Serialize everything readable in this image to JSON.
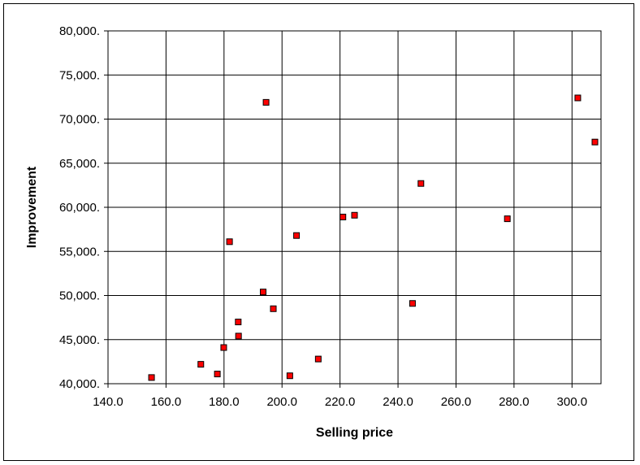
{
  "chart_data": {
    "type": "scatter",
    "title": "",
    "xlabel": "Selling price",
    "ylabel": "Improvement",
    "xlim": [
      140,
      310
    ],
    "ylim": [
      40000,
      80000
    ],
    "grid": true,
    "legend": "none",
    "x_ticks": [
      140,
      160,
      180,
      200,
      220,
      240,
      260,
      280,
      300
    ],
    "x_tick_labels": [
      "140.0",
      "160.0",
      "180.0",
      "200.0",
      "220.0",
      "240.0",
      "260.0",
      "280.0",
      "300.0"
    ],
    "y_ticks": [
      40000,
      45000,
      50000,
      55000,
      60000,
      65000,
      70000,
      75000,
      80000
    ],
    "y_tick_labels": [
      "40,000.",
      "45,000.",
      "50,000.",
      "55,000.",
      "60,000.",
      "65,000.",
      "70,000.",
      "75,000.",
      "80,000."
    ],
    "marker_color": "#ff0000",
    "marker_edge": "#000000",
    "points": [
      {
        "x": 155.0,
        "y": 40700
      },
      {
        "x": 172.0,
        "y": 42200
      },
      {
        "x": 177.7,
        "y": 41100
      },
      {
        "x": 179.9,
        "y": 44100
      },
      {
        "x": 181.9,
        "y": 56100
      },
      {
        "x": 184.9,
        "y": 47000
      },
      {
        "x": 185.0,
        "y": 45400
      },
      {
        "x": 193.5,
        "y": 50400
      },
      {
        "x": 194.5,
        "y": 71900
      },
      {
        "x": 197.0,
        "y": 48500
      },
      {
        "x": 202.7,
        "y": 40900
      },
      {
        "x": 205.0,
        "y": 56800
      },
      {
        "x": 212.5,
        "y": 42800
      },
      {
        "x": 221.0,
        "y": 58900
      },
      {
        "x": 225.0,
        "y": 59100
      },
      {
        "x": 245.0,
        "y": 49100
      },
      {
        "x": 247.9,
        "y": 62700
      },
      {
        "x": 277.7,
        "y": 58700
      },
      {
        "x": 302.0,
        "y": 72400
      },
      {
        "x": 307.9,
        "y": 67400
      }
    ]
  }
}
